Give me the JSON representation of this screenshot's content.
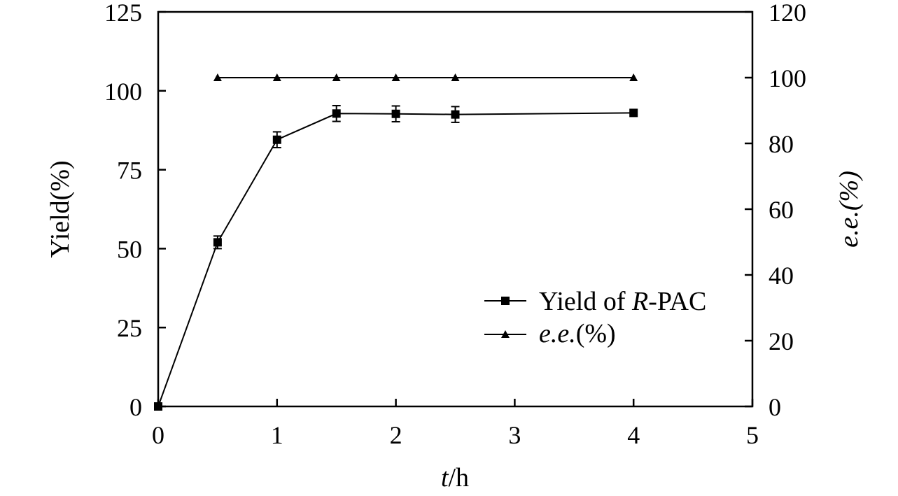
{
  "chart_data": {
    "type": "line",
    "x_axis": {
      "label_italic": "t",
      "label_rest": "/h",
      "range": [
        0,
        5
      ],
      "ticks": [
        "0",
        "1",
        "2",
        "3",
        "4",
        "5"
      ]
    },
    "y_axis_left": {
      "label": "Yield(%)",
      "range": [
        0,
        125
      ],
      "ticks": [
        "0",
        "25",
        "50",
        "75",
        "100",
        "125"
      ]
    },
    "y_axis_right": {
      "label": "e.e.(%)",
      "range": [
        0,
        120
      ],
      "ticks": [
        "0",
        "20",
        "40",
        "60",
        "80",
        "100",
        "120"
      ]
    },
    "series": [
      {
        "name_parts": [
          "Yield of ",
          "R",
          "-PAC"
        ],
        "axis": "left",
        "marker": "square",
        "x": [
          0,
          0.5,
          1,
          1.5,
          2,
          2.5,
          4
        ],
        "y": [
          0,
          52,
          84.5,
          92.8,
          92.7,
          92.5,
          93
        ],
        "error": [
          0,
          2,
          2.5,
          2.5,
          2.5,
          2.5,
          0
        ]
      },
      {
        "name_parts": [
          "e.e.",
          "(%)"
        ],
        "axis": "right",
        "marker": "triangle",
        "x": [
          0.5,
          1,
          1.5,
          2,
          2.5,
          4
        ],
        "y": [
          100,
          100,
          100,
          100,
          100,
          100
        ]
      }
    ],
    "legend_position": "lower-right",
    "grid": false
  }
}
